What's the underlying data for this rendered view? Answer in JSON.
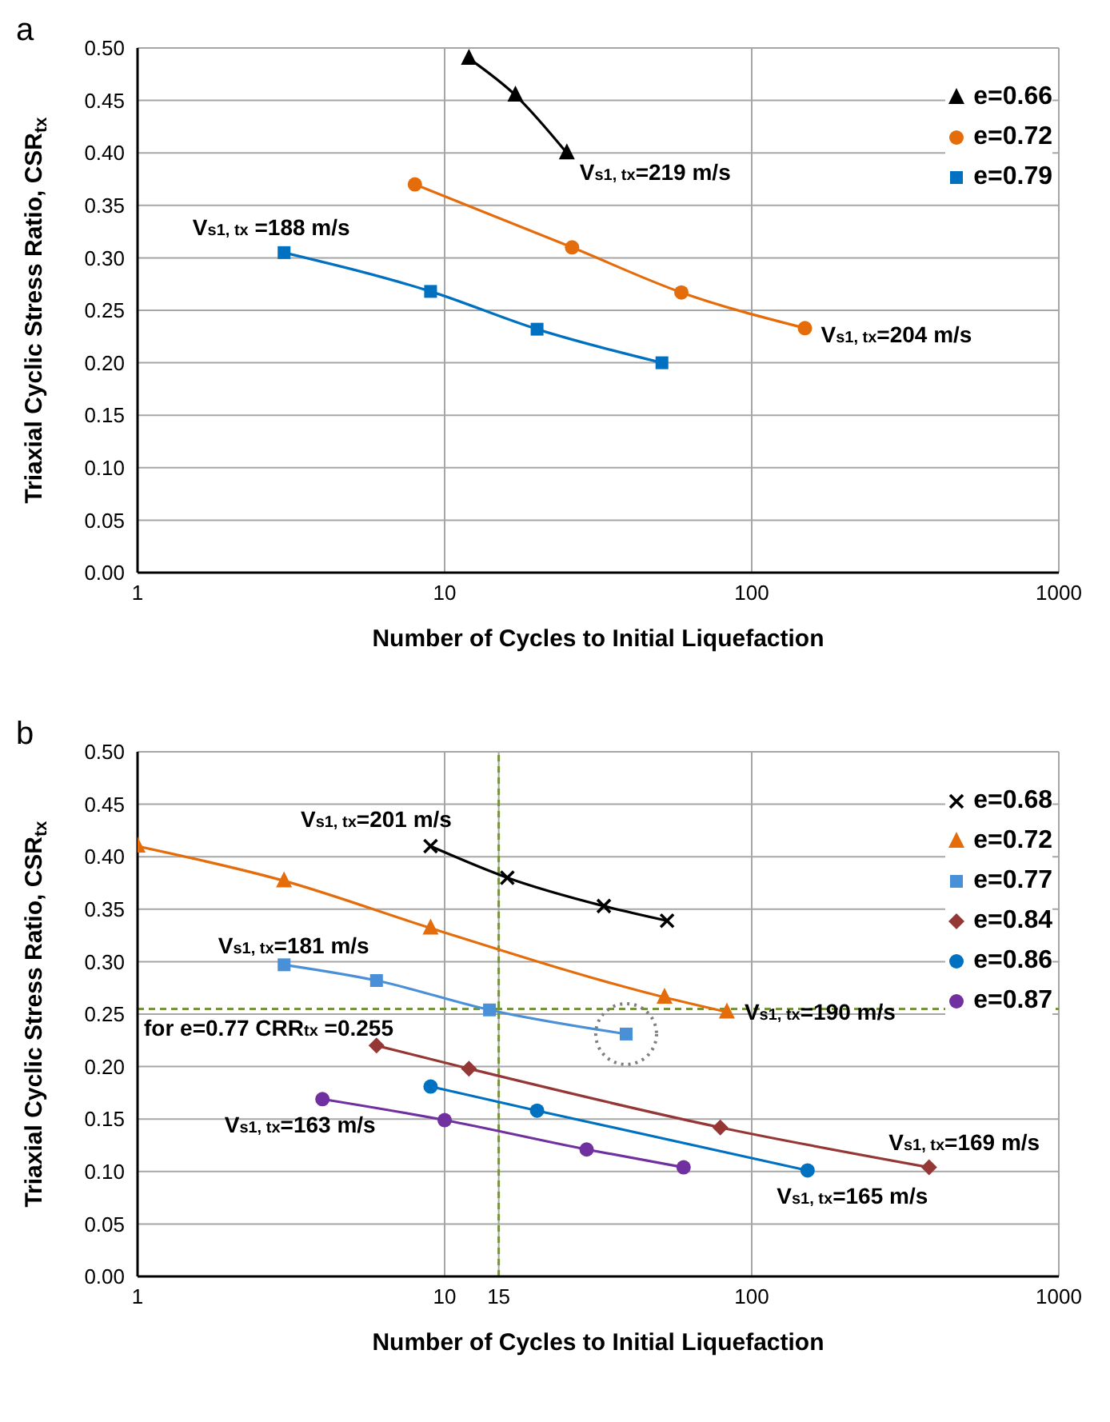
{
  "chart_data": [
    {
      "type": "line",
      "title": "a",
      "xlabel": "Number of Cycles to Initial Liquefaction",
      "ylabel": "Triaxial Cyclic Stress Ratio, CSR$_{tx}$",
      "log": "x",
      "grid": true,
      "legend": "top right",
      "xlim": [
        1,
        1000
      ],
      "xticks": [
        1,
        10,
        100,
        1000
      ],
      "ylim": [
        0,
        0.5
      ],
      "yticks": [
        {
          "value": 0,
          "label": "0.00"
        },
        {
          "value": 0.05,
          "label": "0.05"
        },
        {
          "value": 0.1,
          "label": "0.10"
        },
        {
          "value": 0.15,
          "label": "0.15"
        },
        {
          "value": 0.2,
          "label": "0.20"
        },
        {
          "value": 0.25,
          "label": "0.25"
        },
        {
          "value": 0.3,
          "label": "0.30"
        },
        {
          "value": 0.35,
          "label": "0.35"
        },
        {
          "value": 0.4,
          "label": "0.40"
        },
        {
          "value": 0.45,
          "label": "0.45"
        },
        {
          "value": 0.5,
          "label": "0.50"
        }
      ],
      "series": [
        {
          "name": "e=0.66",
          "color": "#000000",
          "marker": "triangle",
          "x": [
            12,
            17,
            25
          ],
          "values": [
            0.49,
            0.455,
            0.4
          ]
        },
        {
          "name": "e=0.72",
          "color": "#e46c0a",
          "marker": "circle",
          "x": [
            8,
            26,
            59,
            149
          ],
          "values": [
            0.37,
            0.31,
            0.267,
            0.233
          ]
        },
        {
          "name": "e=0.79",
          "color": "#0070c0",
          "marker": "square",
          "x": [
            3,
            9,
            20,
            51
          ],
          "values": [
            0.305,
            0.268,
            0.232,
            0.2
          ]
        }
      ],
      "annotations": [
        {
          "text": "V$_{s1, tx}$=219 m/s",
          "x": 25,
          "y": 0.4
        },
        {
          "text": "V$_{s1, tx}$ =188 m/s",
          "x": 3,
          "y": 0.305
        },
        {
          "text": "V$_{s1, tx}$=204 m/s",
          "x": 149,
          "y": 0.233
        }
      ]
    },
    {
      "type": "line",
      "title": "b",
      "xlabel": "Number of Cycles to Initial Liquefaction",
      "ylabel": "Triaxial Cyclic Stress Ratio, CSR$_{tx}$",
      "log": "x",
      "grid": true,
      "legend": "top right",
      "xlim": [
        1,
        1000
      ],
      "xticks": [
        1,
        10,
        15,
        100,
        1000
      ],
      "ylim": [
        0,
        0.5
      ],
      "yticks": [
        {
          "value": 0,
          "label": "0.00"
        },
        {
          "value": 0.05,
          "label": "0.05"
        },
        {
          "value": 0.1,
          "label": "0.10"
        },
        {
          "value": 0.15,
          "label": "0.15"
        },
        {
          "value": 0.2,
          "label": "0.20"
        },
        {
          "value": 0.25,
          "label": "0.25"
        },
        {
          "value": 0.3,
          "label": "0.30"
        },
        {
          "value": 0.35,
          "label": "0.35"
        },
        {
          "value": 0.4,
          "label": "0.40"
        },
        {
          "value": 0.45,
          "label": "0.45"
        },
        {
          "value": 0.5,
          "label": "0.50"
        }
      ],
      "series": [
        {
          "name": "e=0.68",
          "color": "#000000",
          "marker": "cross",
          "x": [
            9,
            16,
            33,
            53
          ],
          "values": [
            0.41,
            0.38,
            0.353,
            0.339
          ]
        },
        {
          "name": "e=0.72",
          "color": "#e46c0a",
          "marker": "triangle",
          "x": [
            1,
            3,
            9,
            52,
            83
          ],
          "values": [
            0.41,
            0.377,
            0.332,
            0.266,
            0.252
          ]
        },
        {
          "name": "e=0.77",
          "color": "#4a90d9",
          "marker": "square",
          "x": [
            3,
            6,
            14,
            39
          ],
          "values": [
            0.297,
            0.282,
            0.254,
            0.231
          ]
        },
        {
          "name": "e=0.84",
          "color": "#953735",
          "marker": "diamond",
          "x": [
            6,
            12,
            79,
            378
          ],
          "values": [
            0.22,
            0.198,
            0.142,
            0.104
          ]
        },
        {
          "name": "e=0.86",
          "color": "#0070c0",
          "marker": "circle",
          "x": [
            9,
            20,
            152
          ],
          "values": [
            0.181,
            0.158,
            0.101
          ]
        },
        {
          "name": "e=0.87",
          "color": "#7030a0",
          "marker": "circle",
          "x": [
            4,
            10,
            29,
            60
          ],
          "values": [
            0.169,
            0.149,
            0.121,
            0.104
          ]
        }
      ],
      "ref_lines": [
        {
          "axis": "y",
          "value": 0.255,
          "color": "#77933c",
          "line_style": "dashed"
        },
        {
          "axis": "x",
          "value": 15,
          "color": "#77933c",
          "line_style": "dashed"
        }
      ],
      "annotations": [
        {
          "text": "V$_{s1, tx}$=201 m/s",
          "x": 9,
          "y": 0.41
        },
        {
          "text": "V$_{s1, tx}$=181 m/s",
          "x": 3,
          "y": 0.297
        },
        {
          "text": "V$_{s1, tx}$=190 m/s",
          "x": 83,
          "y": 0.252
        },
        {
          "text": "for e=0.77 CRR$_{tx}$ =0.255",
          "x": 1,
          "y": 0.255
        },
        {
          "text": "V$_{s1, tx}$=163 m/s",
          "x": 4,
          "y": 0.169
        },
        {
          "text": "V$_{s1, tx}$=169 m/s",
          "x": 378,
          "y": 0.104
        },
        {
          "text": "V$_{s1, tx}$=165 m/s",
          "x": 152,
          "y": 0.101
        }
      ]
    }
  ]
}
